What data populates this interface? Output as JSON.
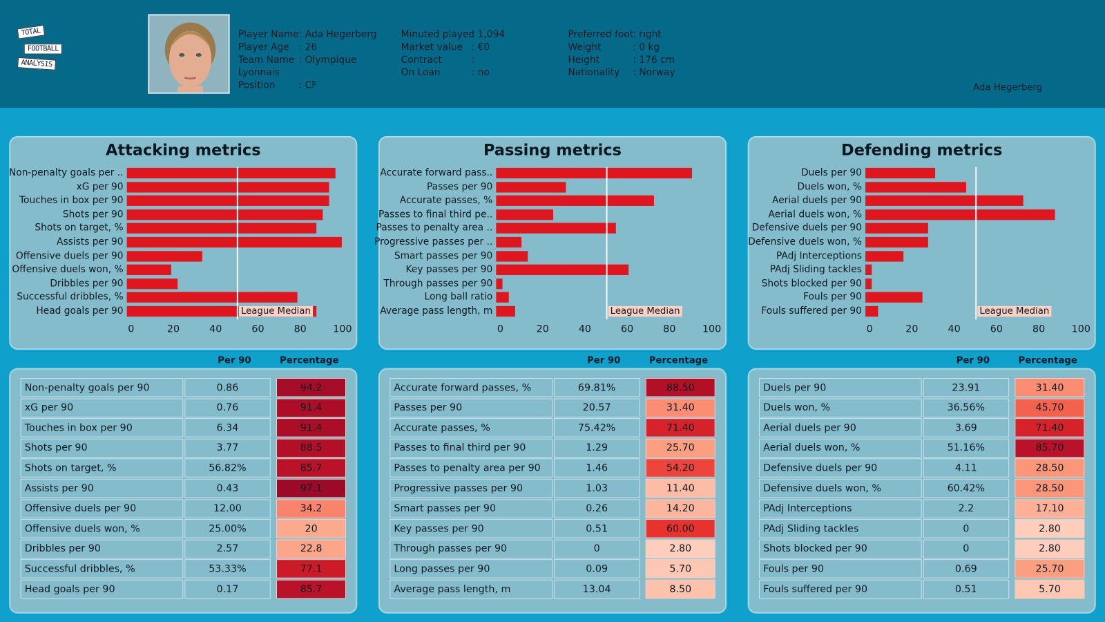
{
  "logo": {
    "words": [
      "TOTAL",
      "FOOTBALL",
      "ANALYSIS"
    ]
  },
  "player": {
    "info_col1": [
      {
        "label": "Player Name",
        "value": ": Ada Hegerberg"
      },
      {
        "label": "Player Age",
        "value": ": 26"
      },
      {
        "label": "Team Name",
        "value": ": Olympique"
      },
      {
        "label": "Lyonnais",
        "value": ""
      },
      {
        "label": "Position",
        "value": ": CF"
      }
    ],
    "info_col2": [
      {
        "label": "Minuted played",
        "value": ": 1,094"
      },
      {
        "label": "Market value",
        "value": ": €0"
      },
      {
        "label": "Contract",
        "value": ":"
      },
      {
        "label": "On Loan",
        "value": ": no"
      }
    ],
    "info_col3": [
      {
        "label": "Preferred foot",
        "value": ": right"
      },
      {
        "label": "Weight",
        "value": ": 0 kg"
      },
      {
        "label": "Height",
        "value": ": 176 cm"
      },
      {
        "label": "Nationality",
        "value": ": Norway"
      }
    ],
    "name_right": "Ada Hegerberg"
  },
  "table_headers": {
    "per90": "Per 90",
    "pct": "Percentage"
  },
  "median_label": "League Median",
  "colors": {
    "bar": "#e0161f",
    "header_bg": "#056a8a",
    "page_bg": "#0fa0cc",
    "panel_bg": "#84bccb"
  },
  "chart_data": [
    {
      "type": "bar",
      "orientation": "horizontal",
      "title": "Attacking metrics",
      "xlim": [
        0,
        100
      ],
      "xticks": [
        "0",
        "20",
        "40",
        "60",
        "80",
        "100"
      ],
      "median": 50,
      "categories": [
        "Non-penalty goals per ..",
        "xG per 90",
        "Touches in box per 90",
        "Shots per 90",
        "Shots on target, %",
        "Assists per 90",
        "Offensive duels per 90",
        "Offensive duels won, %",
        "Dribbles per 90",
        "Successful dribbles, %",
        "Head goals per 90"
      ],
      "values": [
        94.2,
        91.4,
        91.4,
        88.5,
        85.7,
        97.1,
        34.2,
        20,
        22.8,
        77.1,
        85.7
      ]
    },
    {
      "type": "bar",
      "orientation": "horizontal",
      "title": "Passing metrics",
      "xlim": [
        0,
        100
      ],
      "xticks": [
        "0",
        "20",
        "40",
        "60",
        "80",
        "100"
      ],
      "median": 50,
      "categories": [
        "Accurate forward pass..",
        "Passes per 90",
        "Accurate passes, %",
        "Passes to final third pe..",
        "Passes to penalty area ..",
        "Progressive passes per ..",
        "Smart passes per 90",
        "Key passes per 90",
        "Through passes per 90",
        "Long ball ratio",
        "Average pass length, m"
      ],
      "values": [
        88.5,
        31.4,
        71.4,
        25.7,
        54.2,
        11.4,
        14.2,
        60.0,
        2.8,
        5.7,
        8.5
      ]
    },
    {
      "type": "bar",
      "orientation": "horizontal",
      "title": "Defending metrics",
      "xlim": [
        0,
        100
      ],
      "xticks": [
        "0",
        "20",
        "40",
        "60",
        "80",
        "100"
      ],
      "median": 50,
      "categories": [
        "Duels per 90",
        "Duels won, %",
        "Aerial duels per 90",
        "Aerial duels won, %",
        "Defensive duels per 90",
        "Defensive duels won, %",
        "PAdj Interceptions",
        "PAdj Sliding tackles",
        "Shots blocked per 90",
        "Fouls per 90",
        "Fouls suffered per 90"
      ],
      "values": [
        31.4,
        45.7,
        71.4,
        85.7,
        28.5,
        28.5,
        17.1,
        2.8,
        2.8,
        25.7,
        5.7
      ]
    }
  ],
  "tables": [
    {
      "rows": [
        [
          "Non-penalty goals per 90",
          "0.86",
          "94.2"
        ],
        [
          "xG per 90",
          "0.76",
          "91.4"
        ],
        [
          "Touches in box per 90",
          "6.34",
          "91.4"
        ],
        [
          "Shots per 90",
          "3.77",
          "88.5"
        ],
        [
          "Shots on target, %",
          "56.82%",
          "85.7"
        ],
        [
          "Assists per 90",
          "0.43",
          "97.1"
        ],
        [
          "Offensive duels per 90",
          "12.00",
          "34.2"
        ],
        [
          "Offensive duels won, %",
          "25.00%",
          "20"
        ],
        [
          "Dribbles per 90",
          "2.57",
          "22.8"
        ],
        [
          "Successful dribbles, %",
          "53.33%",
          "77.1"
        ],
        [
          "Head goals per 90",
          "0.17",
          "85.7"
        ]
      ]
    },
    {
      "rows": [
        [
          "Accurate forward passes, %",
          "69.81%",
          "88.50"
        ],
        [
          "Passes per 90",
          "20.57",
          "31.40"
        ],
        [
          "Accurate passes, %",
          "75.42%",
          "71.40"
        ],
        [
          "Passes to final third per 90",
          "1.29",
          "25.70"
        ],
        [
          "Passes to penalty area per 90",
          "1.46",
          "54.20"
        ],
        [
          "Progressive passes per 90",
          "1.03",
          "11.40"
        ],
        [
          "Smart passes per 90",
          "0.26",
          "14.20"
        ],
        [
          "Key passes per 90",
          "0.51",
          "60.00"
        ],
        [
          "Through passes per 90",
          "0",
          "2.80"
        ],
        [
          "Long passes per 90",
          "0.09",
          "5.70"
        ],
        [
          "Average pass length, m",
          "13.04",
          "8.50"
        ]
      ]
    },
    {
      "rows": [
        [
          "Duels per 90",
          "23.91",
          "31.40"
        ],
        [
          "Duels won, %",
          "36.56%",
          "45.70"
        ],
        [
          "Aerial duels per 90",
          "3.69",
          "71.40"
        ],
        [
          "Aerial duels won, %",
          "51.16%",
          "85.70"
        ],
        [
          "Defensive duels per 90",
          "4.11",
          "28.50"
        ],
        [
          "Defensive duels won, %",
          "60.42%",
          "28.50"
        ],
        [
          "PAdj Interceptions",
          "2.2",
          "17.10"
        ],
        [
          "PAdj Sliding tackles",
          "0",
          "2.80"
        ],
        [
          "Shots blocked per 90",
          "0",
          "2.80"
        ],
        [
          "Fouls per 90",
          "0.69",
          "25.70"
        ],
        [
          "Fouls suffered per 90",
          "0.51",
          "5.70"
        ]
      ]
    }
  ]
}
